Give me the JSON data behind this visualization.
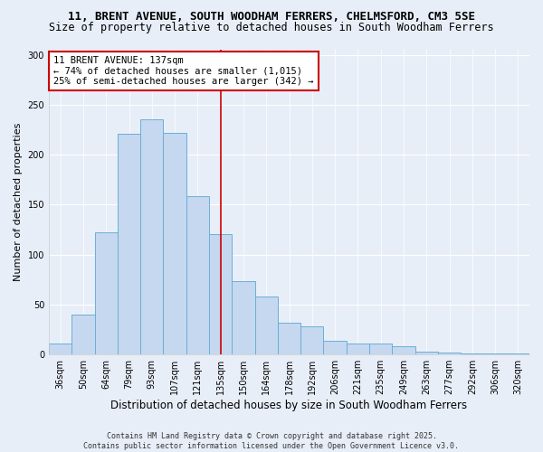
{
  "title_line1": "11, BRENT AVENUE, SOUTH WOODHAM FERRERS, CHELMSFORD, CM3 5SE",
  "title_line2": "Size of property relative to detached houses in South Woodham Ferrers",
  "xlabel": "Distribution of detached houses by size in South Woodham Ferrers",
  "ylabel": "Number of detached properties",
  "categories": [
    "36sqm",
    "50sqm",
    "64sqm",
    "79sqm",
    "93sqm",
    "107sqm",
    "121sqm",
    "135sqm",
    "150sqm",
    "164sqm",
    "178sqm",
    "192sqm",
    "206sqm",
    "221sqm",
    "235sqm",
    "249sqm",
    "263sqm",
    "277sqm",
    "292sqm",
    "306sqm",
    "320sqm"
  ],
  "values": [
    11,
    40,
    122,
    221,
    235,
    222,
    158,
    120,
    73,
    58,
    32,
    28,
    14,
    11,
    11,
    8,
    3,
    2,
    1,
    1,
    1
  ],
  "bar_color": "#c5d8f0",
  "bar_edge_color": "#6baed6",
  "vline_x_index": 7,
  "vline_color": "#cc0000",
  "annotation_text": "11 BRENT AVENUE: 137sqm\n← 74% of detached houses are smaller (1,015)\n25% of semi-detached houses are larger (342) →",
  "annotation_box_color": "#ffffff",
  "annotation_box_edge_color": "#cc0000",
  "ylim": [
    0,
    305
  ],
  "yticks": [
    0,
    50,
    100,
    150,
    200,
    250,
    300
  ],
  "background_color": "#e8eef8",
  "plot_background_color": "#e8eef8",
  "footnote": "Contains HM Land Registry data © Crown copyright and database right 2025.\nContains public sector information licensed under the Open Government Licence v3.0.",
  "title_fontsize": 9.0,
  "subtitle_fontsize": 8.5,
  "xlabel_fontsize": 8.5,
  "ylabel_fontsize": 8.0,
  "tick_fontsize": 7.0,
  "annotation_fontsize": 7.5,
  "footnote_fontsize": 6.0
}
